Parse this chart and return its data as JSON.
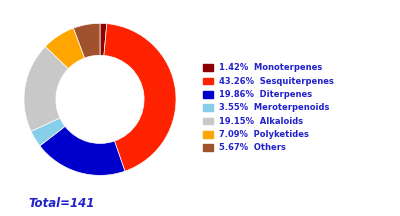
{
  "labels": [
    "Monoterpenes",
    "Sesquiterpenes",
    "Diterpenes",
    "Meroterpenoids",
    "Alkaloids",
    "Polyketides",
    "Others"
  ],
  "percentages": [
    1.42,
    43.26,
    19.86,
    3.55,
    19.15,
    7.09,
    5.67
  ],
  "colors": [
    "#8B0000",
    "#FF2200",
    "#0000CC",
    "#87CEEB",
    "#C8C8C8",
    "#FFA500",
    "#A0522D"
  ],
  "legend_labels": [
    "1.42%  Monoterpenes",
    "43.26%  Sesquiterpenes",
    "19.86%  Diterpenes",
    "3.55%  Meroterpenoids",
    "19.15%  Alkaloids",
    "7.09%  Polyketides",
    "5.67%  Others"
  ],
  "total_label": "Total=141",
  "total_color": "#2222CC",
  "background_color": "#FFFFFF",
  "wedge_edge_color": "#FFFFFF",
  "donut_width": 0.42,
  "startangle": 90
}
